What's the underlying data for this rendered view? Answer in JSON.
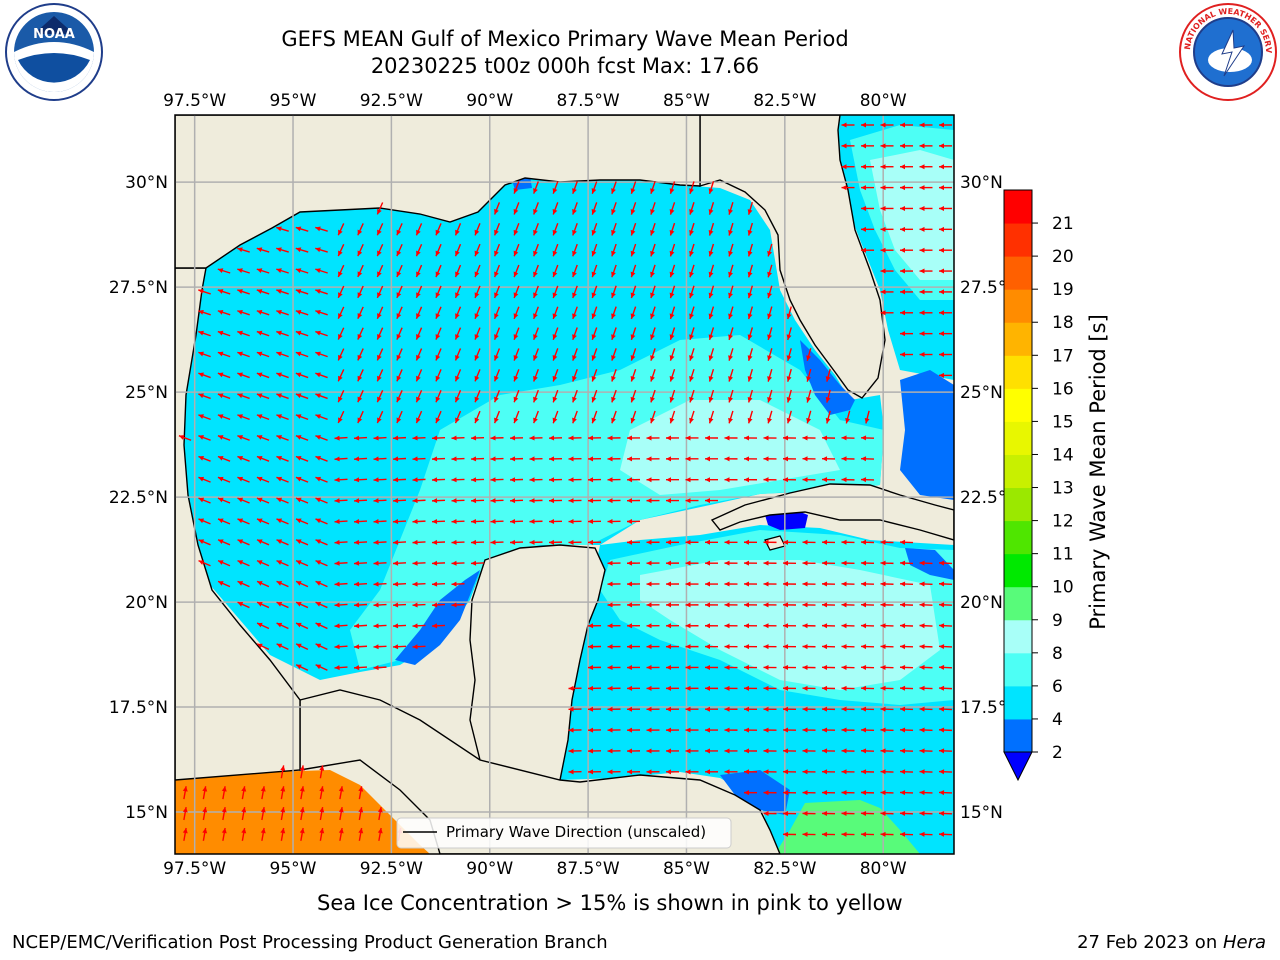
{
  "title_line1": "GEFS MEAN Gulf of Mexico Primary Wave Mean Period",
  "title_line2": "20230225 t00z 000h fcst   Max: 17.66",
  "note": "Sea Ice Concentration > 15% is shown in pink to yellow",
  "footer_left": "NCEP/EMC/Verification Post Processing Product Generation Branch",
  "footer_right_date": "27 Feb 2023 on ",
  "footer_right_host": "Hera",
  "legend_label": "Primary Wave Direction (unscaled)",
  "colorbar_label": "Primary Wave Mean Period [s]",
  "logos": {
    "left": "NOAA",
    "right": "NATIONAL WEATHER SERVICE"
  },
  "colors": {
    "land": "#efecdc",
    "arrow": "#ff0000",
    "grid": "#b0b0b0",
    "coast": "#000000"
  },
  "chart_data": {
    "type": "heatmap",
    "lon_ticks": [
      "97.5°W",
      "95°W",
      "92.5°W",
      "90°W",
      "87.5°W",
      "85°W",
      "82.5°W",
      "80°W"
    ],
    "lon_values": [
      -97.5,
      -95,
      -92.5,
      -90,
      -87.5,
      -85,
      -82.5,
      -80
    ],
    "lat_ticks": [
      "30°N",
      "27.5°N",
      "25°N",
      "22.5°N",
      "20°N",
      "17.5°N",
      "15°N"
    ],
    "lat_values": [
      30,
      27.5,
      25,
      22.5,
      20,
      17.5,
      15
    ],
    "lon_range": [
      -98,
      -78.2
    ],
    "lat_range": [
      14,
      31.6
    ],
    "grid": true,
    "max_value": 17.66,
    "colorbar": {
      "label": "Primary Wave Mean Period [s]",
      "ticks": [
        2,
        4,
        6,
        8,
        9,
        10,
        11,
        12,
        13,
        14,
        15,
        16,
        17,
        18,
        19,
        20,
        21
      ],
      "colors": [
        "#0070ff",
        "#00e4ff",
        "#4dfff5",
        "#a8fff8",
        "#58fb7a",
        "#00e900",
        "#4fe600",
        "#9be800",
        "#c8f000",
        "#e8f700",
        "#ffff00",
        "#ffe000",
        "#ffb400",
        "#ff8c00",
        "#ff6000",
        "#ff3000",
        "#ff0000"
      ],
      "under_color": "#0000ff",
      "extend": "min"
    },
    "regions": [
      {
        "period_band": "4-6 s",
        "color": "#00e4ff",
        "area": "western and northern Gulf, western Caribbean"
      },
      {
        "period_band": "6-8 s",
        "color": "#4dfff5",
        "area": "central Gulf, Yucatan Channel"
      },
      {
        "period_band": "8-9 s",
        "color": "#a8fff8",
        "area": "Atlantic off Florida, central Caribbean"
      },
      {
        "period_band": "2-4 s",
        "color": "#0070ff",
        "area": "Bay of Campeche coast, Florida Bay, Honduras coast, Bahamas"
      },
      {
        "period_band": "<2 s",
        "color": "#0000ff",
        "area": "Isla de la Juventud coast"
      },
      {
        "period_band": "9-10 s",
        "color": "#58fb7a",
        "area": "southern Caribbean near 15N 81W"
      },
      {
        "period_band": "17-18 s",
        "color": "#ff8c00",
        "area": "Pacific south of Mexico"
      }
    ],
    "legend": "Primary Wave Direction (unscaled)",
    "legend_position": "lower-right"
  }
}
